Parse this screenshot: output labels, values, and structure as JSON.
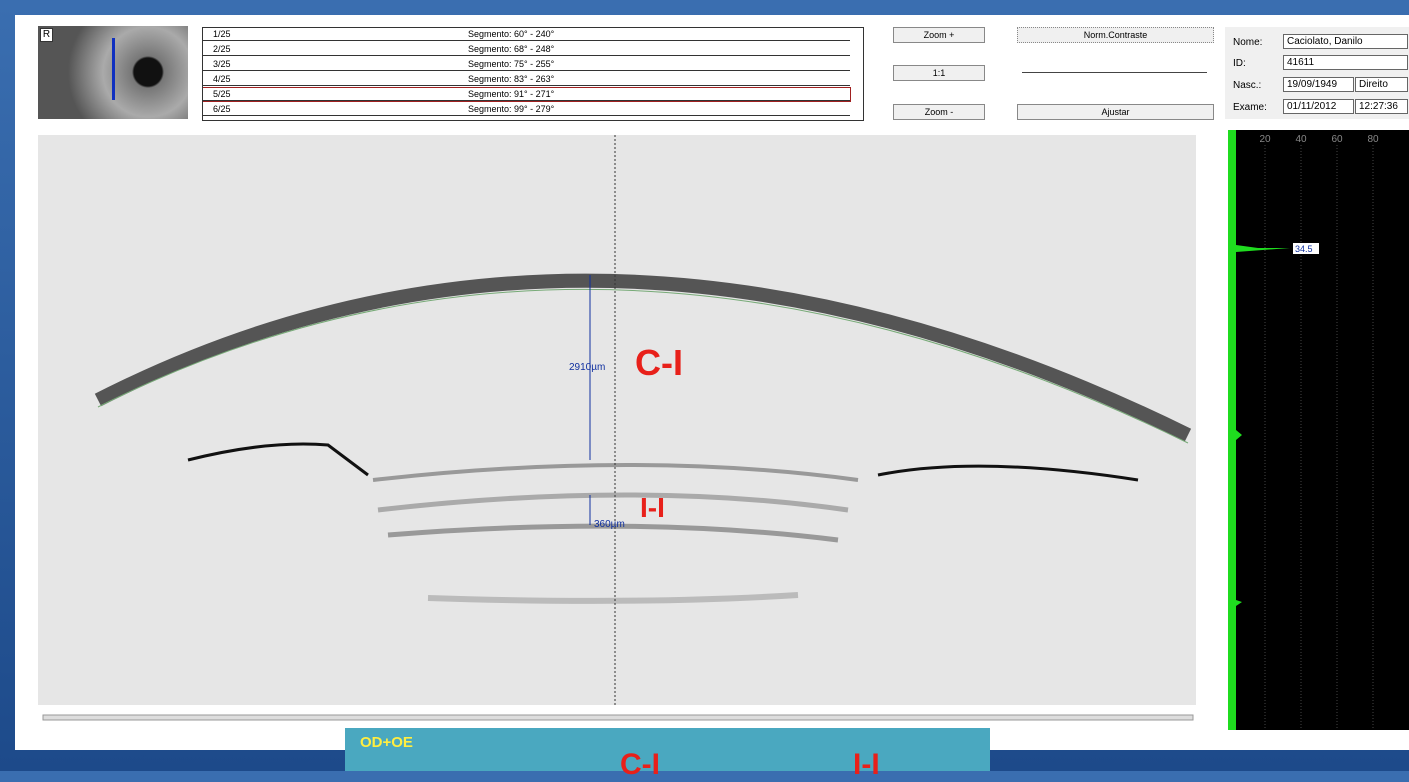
{
  "eye_thumb": {
    "label": "R"
  },
  "segments": [
    [
      "1/25",
      "Segmento: 60° - 240°"
    ],
    [
      "2/25",
      "Segmento: 68° - 248°"
    ],
    [
      "3/25",
      "Segmento: 75° - 255°"
    ],
    [
      "4/25",
      "Segmento: 83° - 263°"
    ],
    [
      "5/25",
      "Segmento: 91° - 271°"
    ],
    [
      "6/25",
      "Segmento: 99° - 279°"
    ]
  ],
  "buttons": {
    "zoom_in": "Zoom +",
    "reset": "1:1",
    "zoom_out": "Zoom -",
    "contrast": "Norm.Contraste",
    "adjust": "Ajustar"
  },
  "patient": {
    "name_label": "Nome:",
    "name": "Caciolato, Danilo",
    "id_label": "ID:",
    "id": "41611",
    "birth_label": "Nasc.:",
    "birth": "19/09/1949",
    "eye": "Direito",
    "exam_label": "Exame:",
    "exam_date": "01/11/2012",
    "exam_time": "12:27:36"
  },
  "profile": {
    "ticks": [
      "20",
      "40",
      "60",
      "80"
    ],
    "peak": "34.5"
  },
  "image": {
    "depth_ci": "2910µm",
    "depth_ii": "360µm",
    "label_ci": "C-I",
    "label_ii": "I-I"
  },
  "footer": {
    "title": "OD+OE",
    "col1": "C-I",
    "col2": "I-I"
  }
}
